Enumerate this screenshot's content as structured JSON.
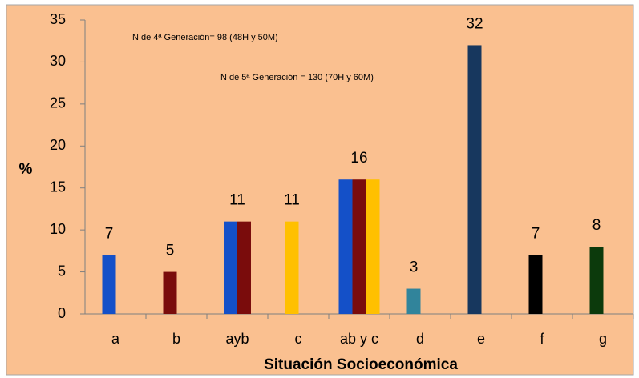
{
  "chart_data": {
    "type": "grouped-bar",
    "categories": [
      "a",
      "b",
      "ayb",
      "c",
      "ab y c",
      "d",
      "e",
      "f",
      "g"
    ],
    "values": [
      [
        7
      ],
      [
        5
      ],
      [
        11,
        11
      ],
      [
        11
      ],
      [
        16,
        16,
        16
      ],
      [
        3
      ],
      [
        32
      ],
      [
        7
      ],
      [
        8
      ]
    ],
    "colors": [
      [
        "#1450c8"
      ],
      [
        "#7a0c0c"
      ],
      [
        "#1450c8",
        "#7a0c0c"
      ],
      [
        "#ffc000"
      ],
      [
        "#1450c8",
        "#7a0c0c",
        "#ffc000"
      ],
      [
        "#31849b"
      ],
      [
        "#17375e"
      ],
      [
        "#000000"
      ],
      [
        "#0c3a0c"
      ]
    ],
    "ylim": [
      0,
      35
    ],
    "yticks": [
      0,
      5,
      10,
      15,
      20,
      25,
      30,
      35
    ],
    "y_label": "%",
    "x_label": "Situación Socioeconómica",
    "annotations": [
      "N de 4ª Generación= 98 (48H y 50M)",
      "N de 5ª Generación = 130 (70H y 60M)"
    ]
  }
}
